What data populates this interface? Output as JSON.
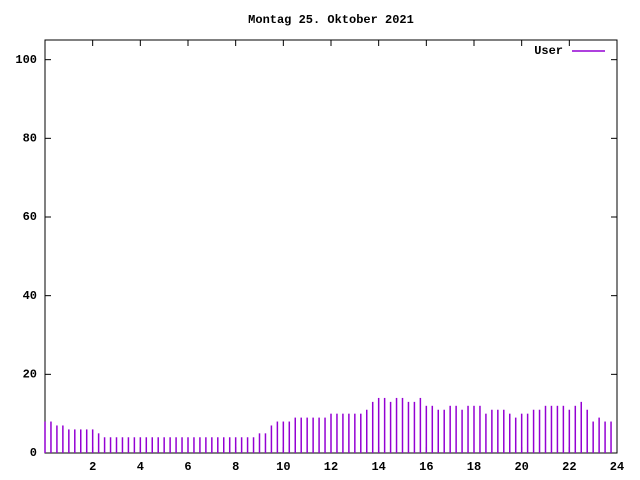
{
  "chart_data": {
    "type": "impulse",
    "title": "Montag 25. Oktober 2021",
    "x": [
      0,
      0.25,
      0.5,
      0.75,
      1,
      1.25,
      1.5,
      1.75,
      2,
      2.25,
      2.5,
      2.75,
      3,
      3.25,
      3.5,
      3.75,
      4,
      4.25,
      4.5,
      4.75,
      5,
      5.25,
      5.5,
      5.75,
      6,
      6.25,
      6.5,
      6.75,
      7,
      7.25,
      7.5,
      7.75,
      8,
      8.25,
      8.5,
      8.75,
      9,
      9.25,
      9.5,
      9.75,
      10,
      10.25,
      10.5,
      10.75,
      11,
      11.25,
      11.5,
      11.75,
      12,
      12.25,
      12.5,
      12.75,
      13,
      13.25,
      13.5,
      13.75,
      14,
      14.25,
      14.5,
      14.75,
      15,
      15.25,
      15.5,
      15.75,
      16,
      16.25,
      16.5,
      16.75,
      17,
      17.25,
      17.5,
      17.75,
      18,
      18.25,
      18.5,
      18.75,
      19,
      19.25,
      19.5,
      19.75,
      20,
      20.25,
      20.5,
      20.75,
      21,
      21.25,
      21.5,
      21.75,
      22,
      22.25,
      22.5,
      22.75,
      23,
      23.25,
      23.5,
      23.75
    ],
    "series": [
      {
        "name": "User",
        "color": "#9400d3",
        "values": [
          8,
          8,
          7,
          7,
          6,
          6,
          6,
          6,
          6,
          5,
          4,
          4,
          4,
          4,
          4,
          4,
          4,
          4,
          4,
          4,
          4,
          4,
          4,
          4,
          4,
          4,
          4,
          4,
          4,
          4,
          4,
          4,
          4,
          4,
          4,
          4,
          5,
          5,
          7,
          8,
          8,
          8,
          9,
          9,
          9,
          9,
          9,
          9,
          10,
          10,
          10,
          10,
          10,
          10,
          11,
          13,
          14,
          14,
          13,
          14,
          14,
          13,
          13,
          14,
          12,
          12,
          11,
          11,
          12,
          12,
          11,
          12,
          12,
          12,
          10,
          11,
          11,
          11,
          10,
          9,
          10,
          10,
          11,
          11,
          12,
          12,
          12,
          12,
          11,
          12,
          13,
          11,
          8,
          9,
          8,
          8
        ]
      }
    ],
    "xlim": [
      0,
      24
    ],
    "xticks": [
      2,
      4,
      6,
      8,
      10,
      12,
      14,
      16,
      18,
      20,
      22,
      24
    ],
    "ylim": [
      0,
      105
    ],
    "yticks": [
      0,
      20,
      40,
      60,
      80,
      100
    ],
    "legend": "top-right"
  }
}
